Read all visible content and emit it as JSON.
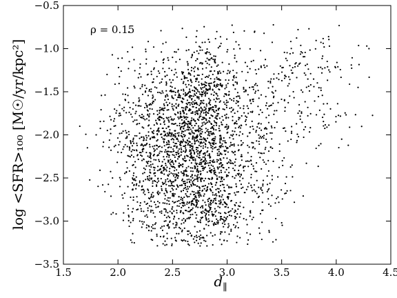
{
  "chart_data": {
    "type": "scatter",
    "title": "",
    "xlabel": "d",
    "xlabel_subscript": "∥",
    "ylabel": "log <SFR>₁₀₀ [M☉/yr/kpc²]",
    "xlim": [
      1.5,
      4.5
    ],
    "ylim": [
      -3.5,
      -0.5
    ],
    "xticks": [
      1.5,
      2.0,
      2.5,
      3.0,
      3.5,
      4.0,
      4.5
    ],
    "xtick_labels": [
      "1.5",
      "2.0",
      "2.5",
      "3.0",
      "3.5",
      "4.0",
      "4.5"
    ],
    "yticks": [
      -3.5,
      -3.0,
      -2.5,
      -2.0,
      -1.5,
      -1.0,
      -0.5
    ],
    "ytick_labels": [
      "−3.5",
      "−3.0",
      "−2.5",
      "−2.0",
      "−1.5",
      "−1.0",
      "−0.5"
    ],
    "grid": false,
    "legend": "none",
    "annotation": "ρ = 0.15",
    "marker_color": "#000000",
    "n_points": 3000,
    "point_cloud": [
      {
        "cx": 2.65,
        "cy": -2.25,
        "sx": 0.28,
        "sy": 0.55,
        "weight": 0.55
      },
      {
        "cx": 2.75,
        "cy": -1.55,
        "sx": 0.2,
        "sy": 0.3,
        "weight": 0.14
      },
      {
        "cx": 2.8,
        "cy": -2.8,
        "sx": 0.22,
        "sy": 0.25,
        "weight": 0.1
      },
      {
        "cx": 2.2,
        "cy": -1.9,
        "sx": 0.2,
        "sy": 0.45,
        "weight": 0.08
      },
      {
        "cx": 3.3,
        "cy": -2.1,
        "sx": 0.22,
        "sy": 0.55,
        "weight": 0.07
      },
      {
        "cx": 3.7,
        "cy": -1.5,
        "sx": 0.3,
        "sy": 0.4,
        "weight": 0.06
      }
    ],
    "sample_points": [
      {
        "x": 1.65,
        "y": -1.9
      },
      {
        "x": 1.72,
        "y": -2.15
      },
      {
        "x": 1.9,
        "y": -1.3
      },
      {
        "x": 3.65,
        "y": -0.78
      },
      {
        "x": 3.75,
        "y": -0.77
      },
      {
        "x": 4.28,
        "y": -0.97
      },
      {
        "x": 4.3,
        "y": -1.0
      },
      {
        "x": 2.95,
        "y": -3.27
      },
      {
        "x": 3.0,
        "y": -3.23
      },
      {
        "x": 2.1,
        "y": -2.95
      },
      {
        "x": 2.2,
        "y": -3.0
      },
      {
        "x": 3.5,
        "y": -3.02
      },
      {
        "x": 4.2,
        "y": -1.45
      },
      {
        "x": 3.55,
        "y": -2.65
      },
      {
        "x": 4.05,
        "y": -2.05
      },
      {
        "x": 1.8,
        "y": -2.0
      },
      {
        "x": 1.95,
        "y": -2.5
      }
    ]
  }
}
